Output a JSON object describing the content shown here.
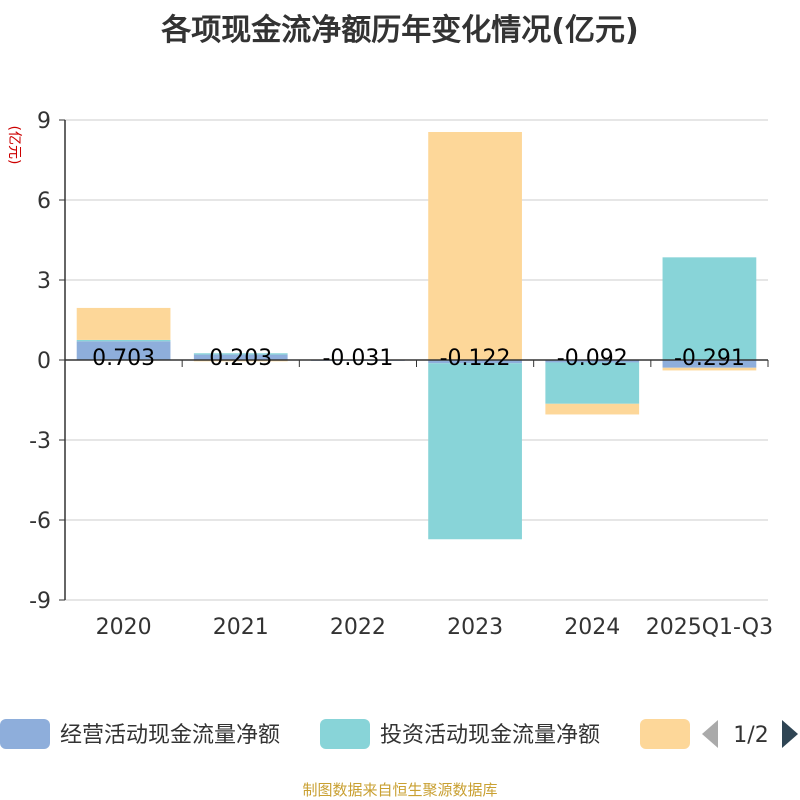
{
  "chart_data": {
    "type": "bar",
    "stacked": true,
    "title": "各项现金流净额历年变化情况(亿元)",
    "ylabel": "(亿元)",
    "ylim": [
      -9,
      9
    ],
    "yticks": [
      9,
      6,
      3,
      0,
      -3,
      -6,
      -9
    ],
    "grid": true,
    "categories": [
      "2020",
      "2021",
      "2022",
      "2023",
      "2024",
      "2025Q1-Q3"
    ],
    "series": [
      {
        "name": "经营活动现金流量净额",
        "color": "#8eaedb",
        "values": [
          0.703,
          0.203,
          -0.031,
          -0.122,
          -0.092,
          -0.291
        ]
      },
      {
        "name": "投资活动现金流量净额",
        "color": "#88d4d8",
        "values": [
          0.05,
          0.05,
          0.01,
          -6.6,
          -1.55,
          3.85
        ]
      },
      {
        "name": "",
        "color": "#fdd799",
        "values": [
          1.2,
          -0.05,
          0.01,
          8.55,
          -0.4,
          -0.1
        ]
      }
    ],
    "data_labels": [
      "0.703",
      "0.203",
      "-0.031",
      "-0.122",
      "-0.092",
      "-0.291"
    ],
    "legend": {
      "position": "bottom",
      "page": "1/2"
    },
    "source": "制图数据来自恒生聚源数据库"
  }
}
